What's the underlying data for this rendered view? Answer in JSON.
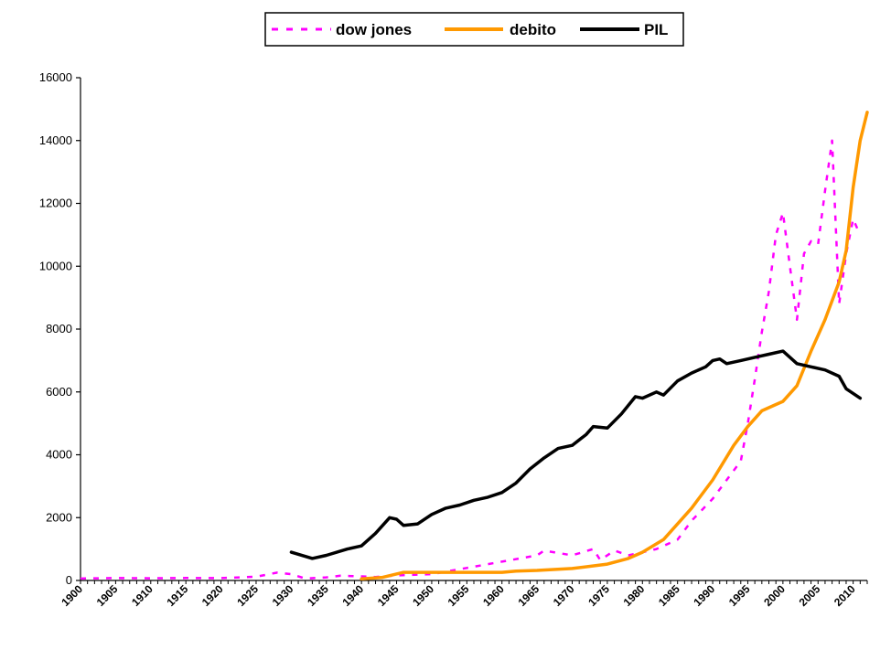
{
  "chart_data": {
    "type": "line",
    "ylim": [
      0,
      16000
    ],
    "xlim": [
      1900,
      2012
    ],
    "y_ticks": [
      0,
      2000,
      4000,
      6000,
      8000,
      10000,
      12000,
      14000,
      16000
    ],
    "x_ticks": [
      1900,
      1905,
      1910,
      1915,
      1920,
      1925,
      1930,
      1935,
      1940,
      1945,
      1950,
      1955,
      1960,
      1965,
      1970,
      1975,
      1980,
      1985,
      1990,
      1995,
      2000,
      2005,
      2010
    ],
    "grid": false,
    "legend_position": "top-center",
    "series": [
      {
        "name": "dow jones",
        "color": "#ff00ff",
        "style": "dashed",
        "points": [
          [
            1900,
            60
          ],
          [
            1905,
            80
          ],
          [
            1910,
            70
          ],
          [
            1915,
            80
          ],
          [
            1920,
            75
          ],
          [
            1925,
            120
          ],
          [
            1928,
            250
          ],
          [
            1930,
            200
          ],
          [
            1932,
            60
          ],
          [
            1935,
            100
          ],
          [
            1937,
            150
          ],
          [
            1940,
            130
          ],
          [
            1942,
            110
          ],
          [
            1945,
            160
          ],
          [
            1950,
            200
          ],
          [
            1955,
            400
          ],
          [
            1960,
            600
          ],
          [
            1965,
            800
          ],
          [
            1966,
            950
          ],
          [
            1970,
            800
          ],
          [
            1973,
            1000
          ],
          [
            1974,
            650
          ],
          [
            1976,
            950
          ],
          [
            1978,
            800
          ],
          [
            1980,
            900
          ],
          [
            1982,
            1000
          ],
          [
            1985,
            1300
          ],
          [
            1987,
            1900
          ],
          [
            1990,
            2600
          ],
          [
            1992,
            3200
          ],
          [
            1994,
            3800
          ],
          [
            1995,
            5000
          ],
          [
            1996,
            6400
          ],
          [
            1997,
            7900
          ],
          [
            1998,
            9200
          ],
          [
            1999,
            11000
          ],
          [
            2000,
            11700
          ],
          [
            2001,
            10000
          ],
          [
            2002,
            8300
          ],
          [
            2003,
            10400
          ],
          [
            2004,
            10800
          ],
          [
            2005,
            10700
          ],
          [
            2006,
            12400
          ],
          [
            2007,
            14000
          ],
          [
            2008,
            8800
          ],
          [
            2009,
            10400
          ],
          [
            2010,
            11500
          ],
          [
            2011,
            11000
          ]
        ]
      },
      {
        "name": "debito",
        "color": "#ff9900",
        "style": "solid",
        "points": [
          [
            1940,
            50
          ],
          [
            1943,
            100
          ],
          [
            1946,
            260
          ],
          [
            1950,
            260
          ],
          [
            1955,
            260
          ],
          [
            1960,
            260
          ],
          [
            1962,
            300
          ],
          [
            1965,
            320
          ],
          [
            1970,
            380
          ],
          [
            1975,
            520
          ],
          [
            1978,
            700
          ],
          [
            1980,
            900
          ],
          [
            1983,
            1300
          ],
          [
            1985,
            1800
          ],
          [
            1987,
            2300
          ],
          [
            1990,
            3200
          ],
          [
            1993,
            4300
          ],
          [
            1995,
            4900
          ],
          [
            1997,
            5400
          ],
          [
            1999,
            5600
          ],
          [
            2000,
            5700
          ],
          [
            2002,
            6200
          ],
          [
            2004,
            7300
          ],
          [
            2006,
            8300
          ],
          [
            2008,
            9500
          ],
          [
            2009,
            10500
          ],
          [
            2010,
            12500
          ],
          [
            2011,
            14000
          ],
          [
            2012,
            14900
          ]
        ]
      },
      {
        "name": "PIL",
        "color": "#000000",
        "style": "solid",
        "points": [
          [
            1930,
            900
          ],
          [
            1933,
            700
          ],
          [
            1935,
            800
          ],
          [
            1938,
            1000
          ],
          [
            1940,
            1100
          ],
          [
            1942,
            1500
          ],
          [
            1944,
            2000
          ],
          [
            1945,
            1950
          ],
          [
            1946,
            1750
          ],
          [
            1948,
            1800
          ],
          [
            1950,
            2100
          ],
          [
            1952,
            2300
          ],
          [
            1954,
            2400
          ],
          [
            1956,
            2550
          ],
          [
            1958,
            2650
          ],
          [
            1960,
            2800
          ],
          [
            1962,
            3100
          ],
          [
            1964,
            3550
          ],
          [
            1966,
            3900
          ],
          [
            1968,
            4200
          ],
          [
            1970,
            4300
          ],
          [
            1972,
            4650
          ],
          [
            1973,
            4900
          ],
          [
            1975,
            4850
          ],
          [
            1977,
            5300
          ],
          [
            1979,
            5850
          ],
          [
            1980,
            5800
          ],
          [
            1982,
            6000
          ],
          [
            1983,
            5900
          ],
          [
            1985,
            6350
          ],
          [
            1987,
            6600
          ],
          [
            1989,
            6800
          ],
          [
            1990,
            7000
          ],
          [
            1991,
            7050
          ],
          [
            1992,
            6900
          ],
          [
            1994,
            7000
          ],
          [
            1996,
            7100
          ],
          [
            1998,
            7200
          ],
          [
            2000,
            7300
          ],
          [
            2002,
            6900
          ],
          [
            2004,
            6800
          ],
          [
            2006,
            6700
          ],
          [
            2008,
            6500
          ],
          [
            2009,
            6100
          ],
          [
            2011,
            5800
          ]
        ]
      }
    ]
  }
}
